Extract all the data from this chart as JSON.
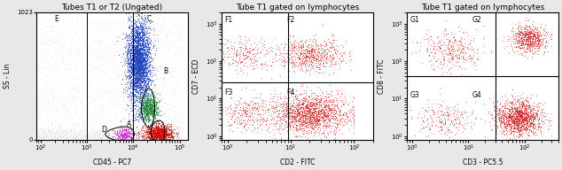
{
  "panel1_title": "Tubes T1 or T2 (Ungated)",
  "panel1_xlabel": "CD45 - PC7",
  "panel1_ylabel": "SS - Lin",
  "panel2_title": "Tube T1 gated on lymphocytes",
  "panel2_xlabel": "CD2 - FITC",
  "panel2_ylabel": "CD7 - ECD",
  "panel3_title": "Tube T1 gated on lymphocytes",
  "panel3_xlabel": "CD3 - PC5.5",
  "panel3_ylabel": "CD8 - FITC",
  "bg_color": "#e8e8e8",
  "plot_bg": "#ffffff",
  "col_blue": "#2244bb",
  "col_red": "#cc1111",
  "col_green": "#228833",
  "col_magenta": "#cc33cc",
  "col_gray": "#c0c0c0",
  "col_lgray": "#d8d8d8",
  "font_title": 6.5,
  "font_label": 5.5,
  "font_tick": 5.0,
  "font_gate": 5.5
}
